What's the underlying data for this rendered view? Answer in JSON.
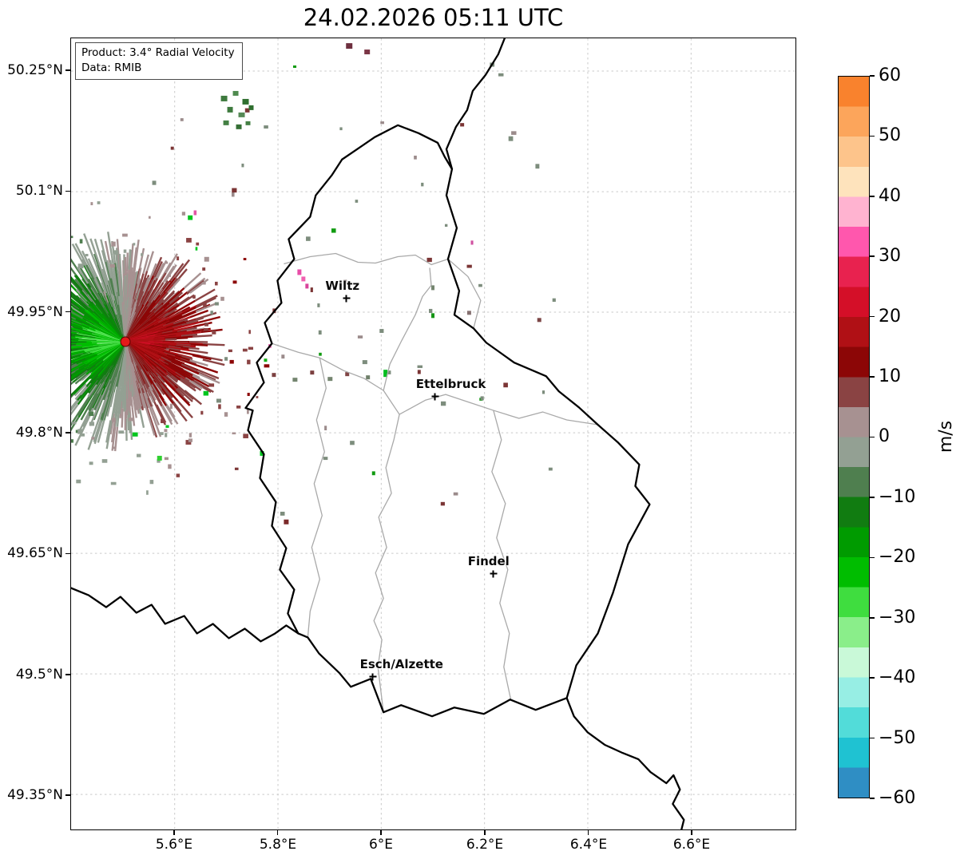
{
  "title": "24.02.2026 05:11 UTC",
  "info_box": {
    "product": "Product: 3.4° Radial Velocity",
    "data": "Data: RMIB"
  },
  "axes": {
    "x_tick_labels": [
      "5.6°E",
      "5.8°E",
      "6°E",
      "6.2°E",
      "6.4°E",
      "6.6°E"
    ],
    "y_tick_labels": [
      "50.25°N",
      "50.1°N",
      "49.95°N",
      "49.8°N",
      "49.65°N",
      "49.5°N",
      "49.35°N"
    ]
  },
  "colorbar": {
    "unit": "m/s",
    "tick_labels": [
      "60",
      "50",
      "40",
      "30",
      "20",
      "10",
      "0",
      "−10",
      "−20",
      "−30",
      "−40",
      "−50",
      "−60"
    ],
    "min": -60,
    "max": 60,
    "band_step": 5,
    "band_colors_top_to_bottom": [
      "#f9822d",
      "#fca55b",
      "#fdc48b",
      "#fee3bc",
      "#ffb3d0",
      "#ff57ad",
      "#e8224f",
      "#d40f28",
      "#b01015",
      "#8c0606",
      "#8a4343",
      "#a79191",
      "#93a093",
      "#4f7f4f",
      "#117c11",
      "#009b00",
      "#00bd00",
      "#3fdd3f",
      "#8aee8a",
      "#c9f9d8",
      "#97eee4",
      "#52dcd9",
      "#1fc2d2",
      "#2f8ec4"
    ]
  },
  "chart_data": {
    "type": "heatmap",
    "title": "24.02.2026 05:11 UTC",
    "product": "3.4° Radial Velocity",
    "data_source": "RMIB",
    "unit": "m/s",
    "lon_range_deg_east": [
      5.4,
      6.8
    ],
    "lat_range_deg_north": [
      49.3,
      50.29
    ],
    "x_ticks_deg_east": [
      5.6,
      5.8,
      6.0,
      6.2,
      6.4,
      6.6
    ],
    "y_ticks_deg_north": [
      50.25,
      50.1,
      49.95,
      49.8,
      49.65,
      49.5,
      49.35
    ],
    "colorbar_range": [
      -60,
      60
    ],
    "colorbar_ticks": [
      60,
      50,
      40,
      30,
      20,
      10,
      0,
      -10,
      -20,
      -30,
      -40,
      -50,
      -60
    ],
    "radar_site": {
      "lon": 5.505,
      "lat": 49.914
    },
    "cities": [
      {
        "name": "Wiltz",
        "lon": 5.932,
        "lat": 49.968
      },
      {
        "name": "Ettelbruck",
        "lon": 6.103,
        "lat": 49.846
      },
      {
        "name": "Findel",
        "lon": 6.216,
        "lat": 49.626
      },
      {
        "name": "Esch/Alzette",
        "lon": 5.983,
        "lat": 49.498
      }
    ],
    "description": "Doppler radial velocity field centred on the radar site: negative velocities (green, motion toward radar) west of the site, positive velocities (dark red, motion away) east of the site, with scattered clutter speckles over Luxembourg and surroundings."
  }
}
